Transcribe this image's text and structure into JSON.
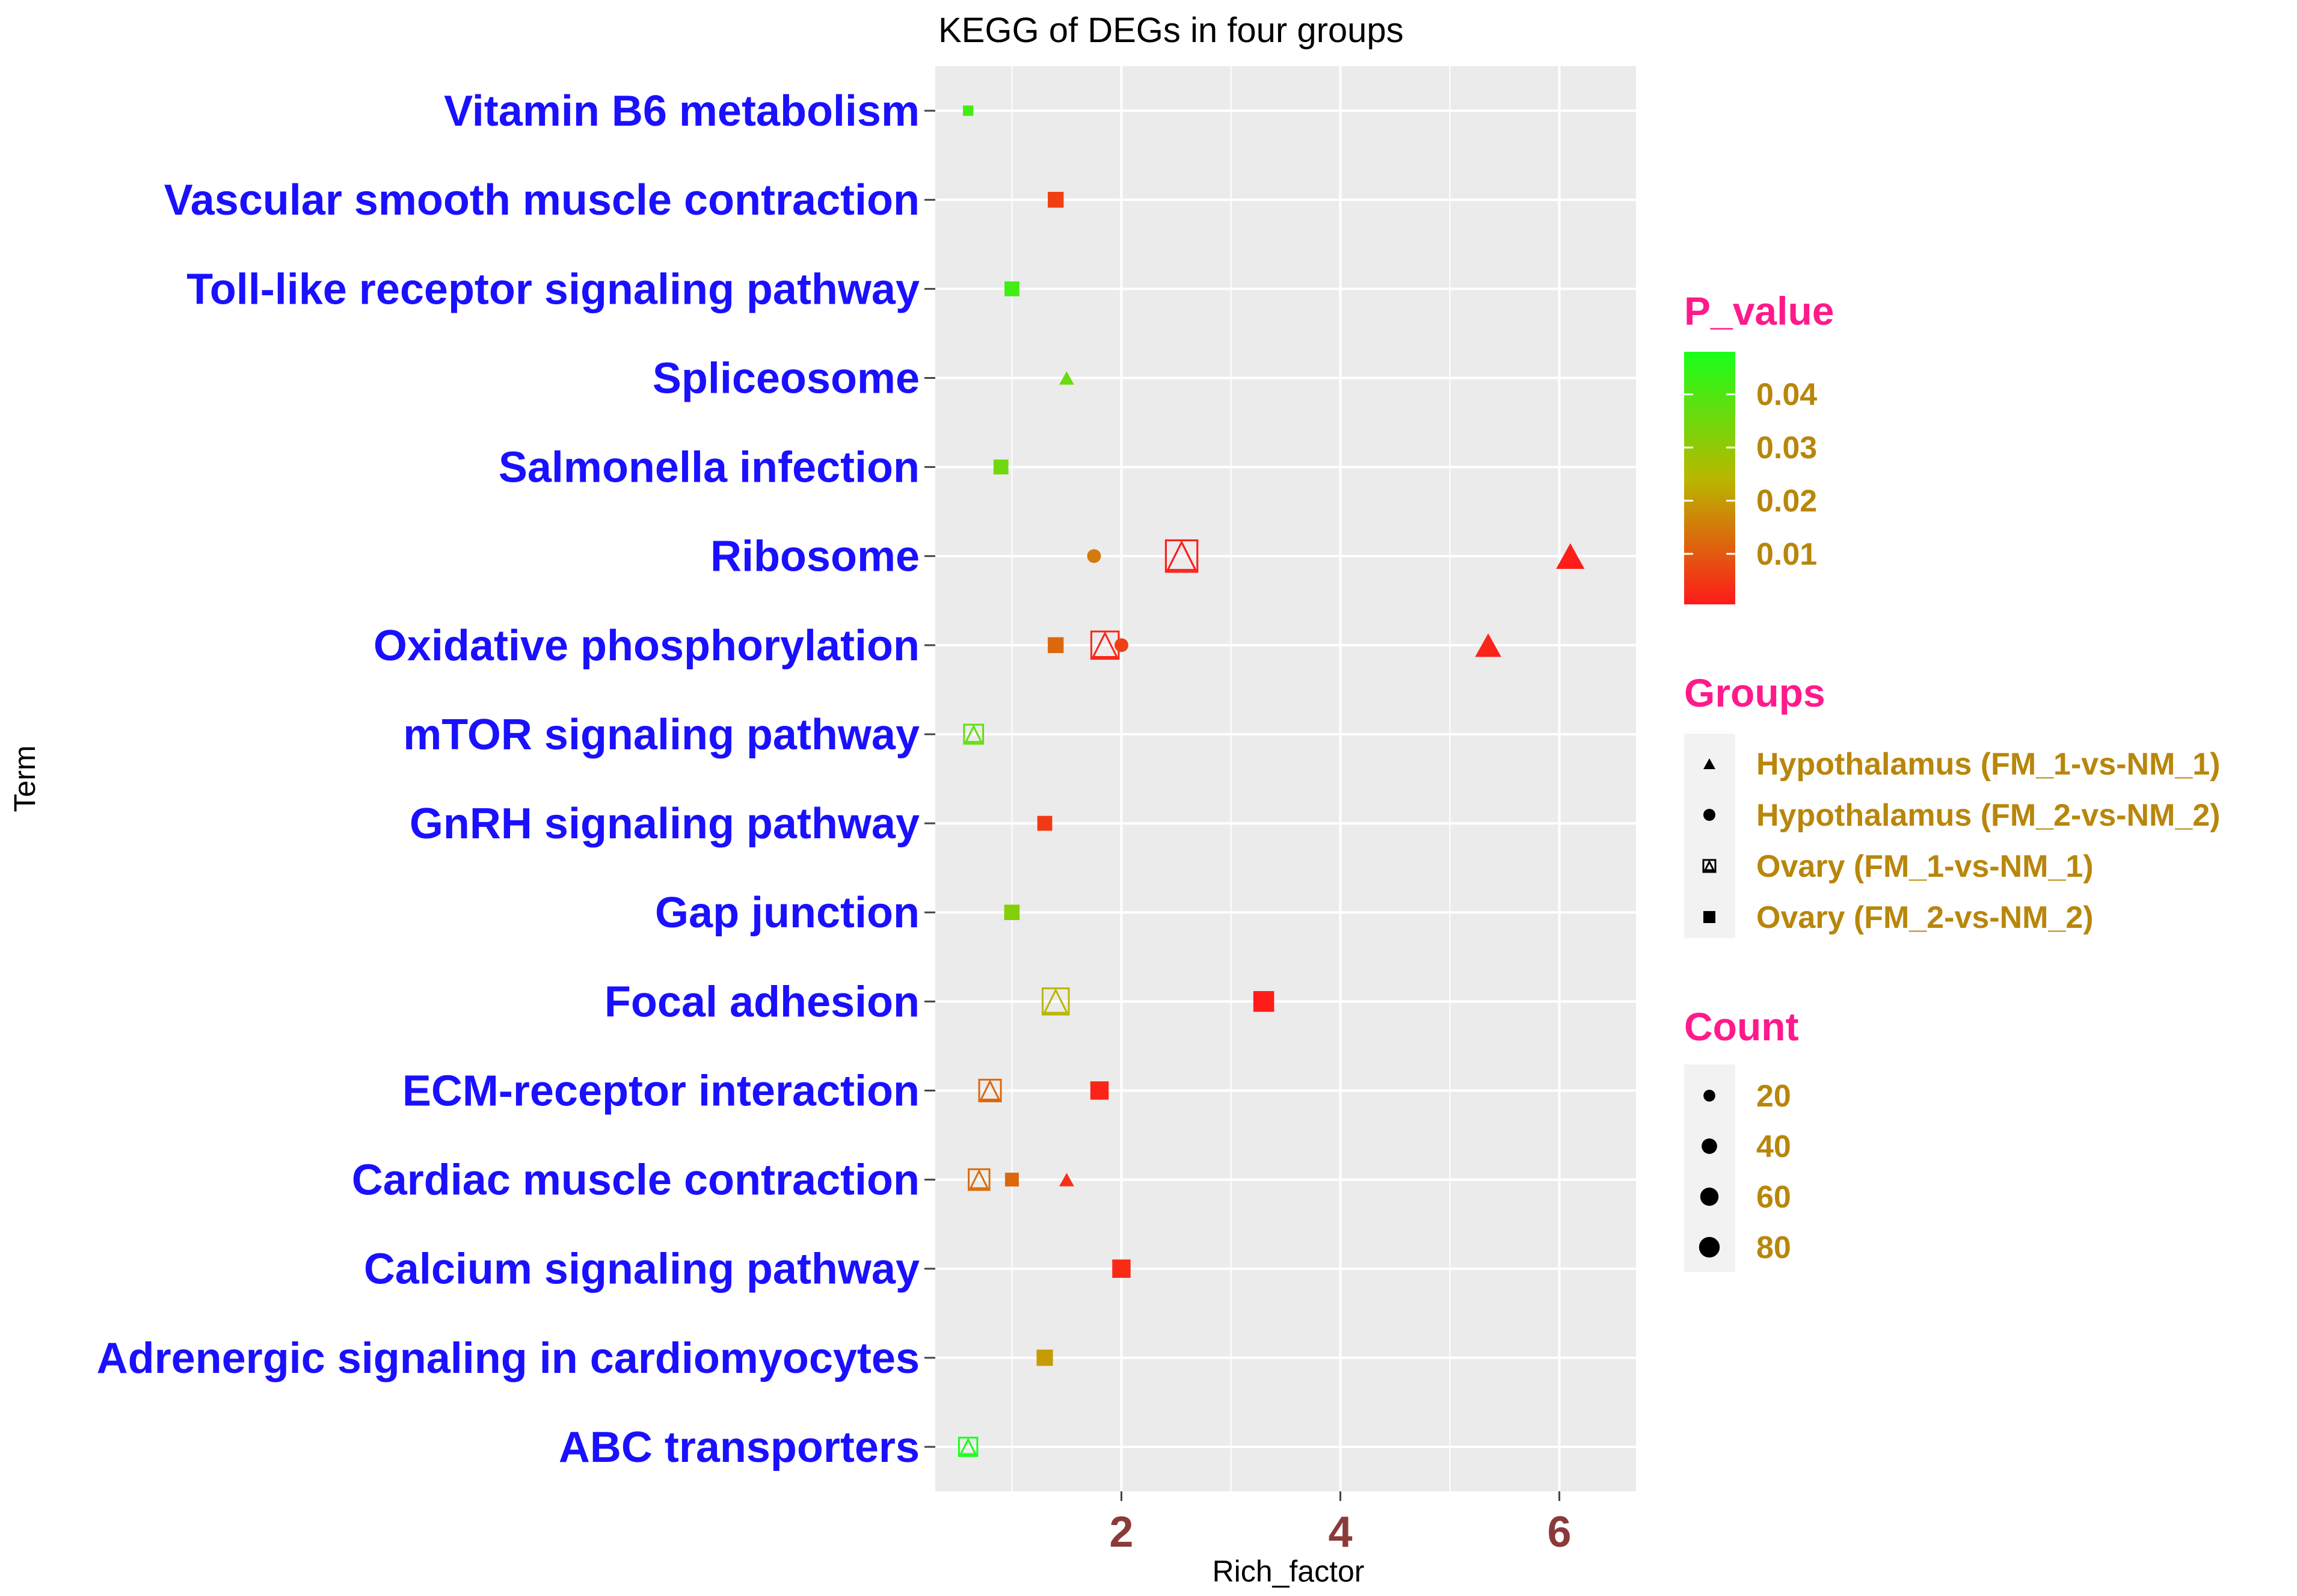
{
  "chart_data": {
    "type": "scatter",
    "title": "KEGG of DEGs in four groups",
    "xlabel": "Rich_factor",
    "ylabel": "Term",
    "xlim": [
      0.3,
      6.7
    ],
    "xticks": [
      2,
      4,
      6
    ],
    "terms": [
      "Vitamin B6 metabolism",
      "Vascular smooth muscle contraction",
      "Toll-like receptor signaling pathway",
      "Spliceosome",
      "Salmonella infection",
      "Ribosome",
      "Oxidative phosphorylation",
      "mTOR signaling pathway",
      "GnRH signaling pathway",
      "Gap junction",
      "Focal adhesion",
      "ECM-receptor interaction",
      "Cardiac muscle contraction",
      "Calcium signaling pathway",
      "Adrenergic signaling in cardiomyocytes",
      "ABC transporters"
    ],
    "points": [
      {
        "term": "Vitamin B6 metabolism",
        "group": "Ovary (FM_2-vs-NM_2)",
        "x": 0.6,
        "count": 3,
        "p": 0.042
      },
      {
        "term": "Vascular smooth muscle contraction",
        "group": "Ovary (FM_2-vs-NM_2)",
        "x": 1.4,
        "count": 12,
        "p": 0.006
      },
      {
        "term": "Toll-like receptor signaling pathway",
        "group": "Ovary (FM_2-vs-NM_2)",
        "x": 1.0,
        "count": 10,
        "p": 0.042
      },
      {
        "term": "Spliceosome",
        "group": "Hypothalamus (FM_1-vs-NM_1)",
        "x": 1.5,
        "count": 10,
        "p": 0.036
      },
      {
        "term": "Salmonella infection",
        "group": "Ovary (FM_2-vs-NM_2)",
        "x": 0.9,
        "count": 10,
        "p": 0.035
      },
      {
        "term": "Ribosome",
        "group": "Hypothalamus (FM_2-vs-NM_2)",
        "x": 1.75,
        "count": 8,
        "p": 0.015
      },
      {
        "term": "Ribosome",
        "group": "Ovary (FM_1-vs-NM_1)",
        "x": 2.55,
        "count": 70,
        "p": 0.001
      },
      {
        "term": "Ribosome",
        "group": "Hypothalamus (FM_1-vs-NM_1)",
        "x": 6.1,
        "count": 55,
        "p": 0.001
      },
      {
        "term": "Oxidative phosphorylation",
        "group": "Ovary (FM_2-vs-NM_2)",
        "x": 1.4,
        "count": 12,
        "p": 0.012
      },
      {
        "term": "Oxidative phosphorylation",
        "group": "Ovary (FM_1-vs-NM_1)",
        "x": 1.85,
        "count": 50,
        "p": 0.002
      },
      {
        "term": "Oxidative phosphorylation",
        "group": "Hypothalamus (FM_2-vs-NM_2)",
        "x": 2.0,
        "count": 8,
        "p": 0.006
      },
      {
        "term": "Oxidative phosphorylation",
        "group": "Hypothalamus (FM_1-vs-NM_1)",
        "x": 5.35,
        "count": 45,
        "p": 0.002
      },
      {
        "term": "mTOR signaling pathway",
        "group": "Ovary (FM_1-vs-NM_1)",
        "x": 0.65,
        "count": 20,
        "p": 0.037
      },
      {
        "term": "GnRH signaling pathway",
        "group": "Ovary (FM_2-vs-NM_2)",
        "x": 1.3,
        "count": 10,
        "p": 0.005
      },
      {
        "term": "Gap junction",
        "group": "Ovary (FM_2-vs-NM_2)",
        "x": 1.0,
        "count": 11,
        "p": 0.032
      },
      {
        "term": "Focal adhesion",
        "group": "Ovary (FM_1-vs-NM_1)",
        "x": 1.4,
        "count": 45,
        "p": 0.024
      },
      {
        "term": "Focal adhesion",
        "group": "Ovary (FM_2-vs-NM_2)",
        "x": 3.3,
        "count": 25,
        "p": 0.001
      },
      {
        "term": "ECM-receptor interaction",
        "group": "Ovary (FM_1-vs-NM_1)",
        "x": 0.8,
        "count": 28,
        "p": 0.012
      },
      {
        "term": "ECM-receptor interaction",
        "group": "Ovary (FM_2-vs-NM_2)",
        "x": 1.8,
        "count": 18,
        "p": 0.002
      },
      {
        "term": "Cardiac muscle contraction",
        "group": "Ovary (FM_1-vs-NM_1)",
        "x": 0.7,
        "count": 25,
        "p": 0.013
      },
      {
        "term": "Cardiac muscle contraction",
        "group": "Ovary (FM_2-vs-NM_2)",
        "x": 1.0,
        "count": 8,
        "p": 0.012
      },
      {
        "term": "Cardiac muscle contraction",
        "group": "Hypothalamus (FM_1-vs-NM_1)",
        "x": 1.5,
        "count": 10,
        "p": 0.004
      },
      {
        "term": "Calcium signaling pathway",
        "group": "Ovary (FM_2-vs-NM_2)",
        "x": 2.0,
        "count": 18,
        "p": 0.003
      },
      {
        "term": "Adrenergic signaling in cardiomyocytes",
        "group": "Ovary (FM_2-vs-NM_2)",
        "x": 1.3,
        "count": 13,
        "p": 0.02
      },
      {
        "term": "ABC transporters",
        "group": "Ovary (FM_1-vs-NM_1)",
        "x": 0.6,
        "count": 18,
        "p": 0.048
      }
    ],
    "legend": {
      "p_value": {
        "title": "P_value",
        "ticks": [
          "0.04",
          "0.03",
          "0.02",
          "0.01"
        ],
        "tick_values": [
          0.04,
          0.03,
          0.02,
          0.01
        ],
        "range": [
          0.0005,
          0.048
        ],
        "colors": {
          "low": "#ff1a1a",
          "mid": "#b8b800",
          "high": "#1aff1a"
        }
      },
      "groups": {
        "title": "Groups",
        "items": [
          "Hypothalamus (FM_1-vs-NM_1)",
          "Hypothalamus (FM_2-vs-NM_2)",
          "Ovary (FM_1-vs-NM_1)",
          "Ovary (FM_2-vs-NM_2)"
        ]
      },
      "count": {
        "title": "Count",
        "items": [
          "20",
          "40",
          "60",
          "80"
        ],
        "values": [
          20,
          40,
          60,
          80
        ]
      }
    }
  }
}
